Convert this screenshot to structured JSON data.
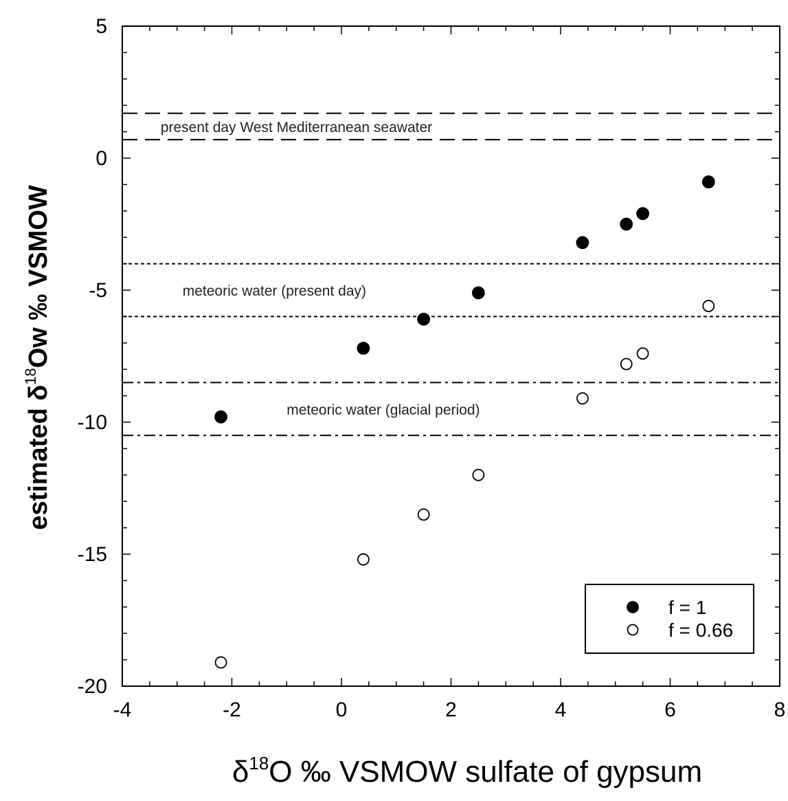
{
  "chart_data": {
    "type": "scatter",
    "xlabel": {
      "prefix": "δ",
      "sup": "18",
      "suffix": "O ‰ VSMOW sulfate of gypsum"
    },
    "ylabel": {
      "prefix": "estimated δ",
      "sup": "18",
      "suffix": "Ow ‰ VSMOW"
    },
    "xlim": [
      -4,
      8
    ],
    "ylim": [
      -20,
      5
    ],
    "xticks": [
      -4,
      -2,
      0,
      2,
      4,
      6,
      8
    ],
    "yticks": [
      5,
      0,
      -5,
      -10,
      -15,
      -20
    ],
    "xtick_labels": [
      "-4",
      "-2",
      "0",
      "2",
      "4",
      "6",
      "8"
    ],
    "ytick_labels": [
      "5",
      "0",
      "-5",
      "-10",
      "-15",
      "-20"
    ],
    "x_minor_step": 0.5,
    "y_minor_step": 1,
    "grid": false,
    "legend_position": "bottom-right",
    "series": [
      {
        "name": "f = 1",
        "marker": "filled-circle",
        "color": "#000000",
        "points": [
          {
            "x": -2.2,
            "y": -9.8
          },
          {
            "x": 0.4,
            "y": -7.2
          },
          {
            "x": 1.5,
            "y": -6.1
          },
          {
            "x": 2.5,
            "y": -5.1
          },
          {
            "x": 4.4,
            "y": -3.2
          },
          {
            "x": 5.2,
            "y": -2.5
          },
          {
            "x": 5.5,
            "y": -2.1
          },
          {
            "x": 6.7,
            "y": -0.9
          }
        ]
      },
      {
        "name": "f = 0.66",
        "marker": "open-circle",
        "color": "#000000",
        "points": [
          {
            "x": -2.2,
            "y": -19.1
          },
          {
            "x": 0.4,
            "y": -15.2
          },
          {
            "x": 1.5,
            "y": -13.5
          },
          {
            "x": 2.5,
            "y": -12.0
          },
          {
            "x": 4.4,
            "y": -9.1
          },
          {
            "x": 5.2,
            "y": -7.8
          },
          {
            "x": 5.5,
            "y": -7.4
          },
          {
            "x": 6.7,
            "y": -5.6
          }
        ]
      }
    ],
    "reference_bands": [
      {
        "label": "present day West Mediterranean seawater",
        "y_top": 1.7,
        "y_bottom": 0.7,
        "style": "dashed",
        "label_x": -3.3
      },
      {
        "label": "meteoric water (present day)",
        "y_top": -4.0,
        "y_bottom": -6.0,
        "style": "dotted",
        "label_x": -2.9
      },
      {
        "label": "meteoric water (glacial period)",
        "y_top": -8.5,
        "y_bottom": -10.5,
        "style": "dashdot",
        "label_x": -1.0
      }
    ]
  }
}
